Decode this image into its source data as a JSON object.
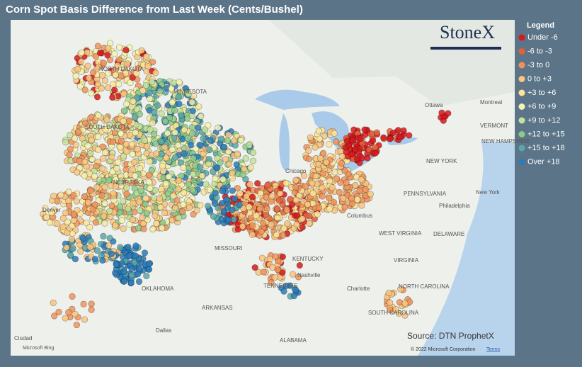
{
  "header": {
    "title": "Corn Spot Basis Difference from Last Week (Cents/Bushel)"
  },
  "legend": {
    "title": "Legend",
    "items": [
      {
        "label": "Under -6",
        "color": "#d7191c"
      },
      {
        "label": "-6 to -3",
        "color": "#e5603a"
      },
      {
        "label": "-3 to 0",
        "color": "#f0935a"
      },
      {
        "label": "0 to +3",
        "color": "#f9c57f"
      },
      {
        "label": "+3 to +6",
        "color": "#fde59b"
      },
      {
        "label": "+6 to +9",
        "color": "#f2f5b4"
      },
      {
        "label": "+9 to +12",
        "color": "#c3e39c"
      },
      {
        "label": "+12 to +15",
        "color": "#8ccb8c"
      },
      {
        "label": "+15 to +18",
        "color": "#5aa8a8"
      },
      {
        "label": "Over +18",
        "color": "#2b7bba"
      }
    ]
  },
  "map": {
    "places": [
      "NORTH DAKOTA",
      "MINNESOTA",
      "SOUTH DAKOTA",
      "NEBRASKA",
      "Chicago",
      "Ottawa",
      "Montreal",
      "VERMONT",
      "NEW HAMPSHIRE",
      "NEW YORK",
      "PENNSYLVANIA",
      "New York",
      "Philadelphia",
      "Columbus",
      "WEST VIRGINIA",
      "DELAWARE",
      "MISSOURI",
      "KENTUCKY",
      "Nashville",
      "VIRGINIA",
      "TENNESSEE",
      "Charlotte",
      "NORTH CAROLINA",
      "OKLAHOMA",
      "ARKANSAS",
      "SOUTH CAROLINA",
      "Dallas",
      "ALABAMA",
      "Denver",
      "Ciudad"
    ],
    "logo": "StoneX",
    "source": "Source: DTN ProphetX",
    "copyright": "© 2022 Microsoft Corporation",
    "terms": "Terms",
    "bing": "Microsoft Bing"
  }
}
